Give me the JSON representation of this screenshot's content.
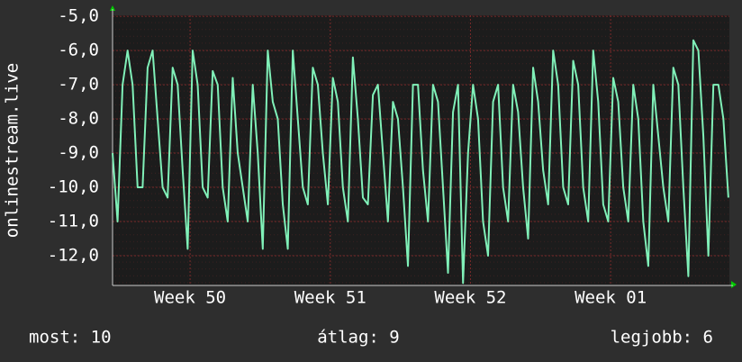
{
  "chart_data": {
    "type": "line",
    "ylabel": "onlinestream.live",
    "x": [
      0,
      0.25,
      0.5,
      0.75,
      1,
      1.25,
      1.5,
      1.75,
      2,
      2.25,
      2.5,
      2.75,
      3,
      3.25,
      3.5,
      3.75,
      4,
      4.25,
      4.5,
      4.75,
      5,
      5.25,
      5.5,
      5.75,
      6,
      6.25,
      6.5,
      6.75,
      7,
      7.25,
      7.5,
      7.75,
      8,
      8.25,
      8.5,
      8.75,
      9,
      9.25,
      9.5,
      9.75,
      10,
      10.25,
      10.5,
      10.75,
      11,
      11.25,
      11.5,
      11.75,
      12,
      12.25,
      12.5,
      12.75,
      13,
      13.25,
      13.5,
      13.75,
      14,
      14.25,
      14.5,
      14.75,
      15,
      15.25,
      15.5,
      15.75,
      16,
      16.25,
      16.5,
      16.75,
      17,
      17.25,
      17.5,
      17.75,
      18,
      18.25,
      18.5,
      18.75,
      19,
      19.25,
      19.5,
      19.75,
      20,
      20.25,
      20.5,
      20.75,
      21,
      21.25,
      21.5,
      21.75,
      22,
      22.25,
      22.5,
      22.75,
      23,
      23.25,
      23.5,
      23.75,
      24,
      24.25,
      24.5,
      24.75,
      25,
      25.25,
      25.5,
      25.75,
      26,
      26.25,
      26.5,
      26.75,
      27,
      27.25,
      27.5,
      27.75,
      28,
      28.25,
      28.5,
      28.75,
      29,
      29.25,
      29.5,
      29.75,
      30,
      30.25,
      30.5,
      30.75
    ],
    "series": [
      {
        "name": "onlinestream.live",
        "color": "#80f0b8",
        "values": [
          -9.0,
          -11.0,
          -7.0,
          -6.0,
          -7.0,
          -10.0,
          -10.0,
          -6.5,
          -6.0,
          -8.0,
          -10.0,
          -10.3,
          -6.5,
          -7.0,
          -9.5,
          -11.8,
          -6.0,
          -7.0,
          -10.0,
          -10.3,
          -6.6,
          -7.0,
          -10.0,
          -11.0,
          -6.8,
          -9.0,
          -10.0,
          -11.0,
          -7.0,
          -9.0,
          -11.8,
          -6.0,
          -7.5,
          -8.0,
          -10.5,
          -11.8,
          -6.0,
          -8.0,
          -10.0,
          -10.5,
          -6.5,
          -7.0,
          -9.0,
          -10.5,
          -6.8,
          -7.5,
          -10.0,
          -11.0,
          -6.2,
          -8.0,
          -10.3,
          -10.5,
          -7.3,
          -7.0,
          -9.0,
          -11.0,
          -7.5,
          -8.0,
          -10.0,
          -12.3,
          -7.0,
          -7.0,
          -9.5,
          -11.0,
          -7.0,
          -7.5,
          -10.0,
          -12.5,
          -7.8,
          -7.0,
          -12.8,
          -9.0,
          -7.0,
          -8.0,
          -11.0,
          -12.0,
          -7.5,
          -7.0,
          -10.0,
          -11.0,
          -7.0,
          -7.8,
          -10.0,
          -11.5,
          -6.5,
          -7.5,
          -9.5,
          -10.5,
          -6.0,
          -7.0,
          -10.0,
          -10.5,
          -6.3,
          -7.0,
          -10.0,
          -11.0,
          -6.0,
          -7.5,
          -10.5,
          -11.0,
          -6.8,
          -7.5,
          -10.0,
          -11.0,
          -7.0,
          -8.0,
          -11.0,
          -12.3,
          -7.0,
          -8.5,
          -10.0,
          -11.0,
          -6.5,
          -7.0,
          -10.0,
          -12.6,
          -5.7,
          -6.0,
          -8.5,
          -12.0,
          -7.0,
          -7.0,
          -8.0,
          -10.3
        ]
      }
    ],
    "xlim": [
      0,
      30.8
    ],
    "xticks": [
      {
        "value": 3.87,
        "label": "Week 50"
      },
      {
        "value": 10.87,
        "label": "Week 51"
      },
      {
        "value": 17.87,
        "label": "Week 52"
      },
      {
        "value": 24.87,
        "label": "Week 01"
      }
    ],
    "ylim": [
      -12.87,
      -4.97
    ],
    "yticks": [
      {
        "value": -5,
        "label": "-5,0"
      },
      {
        "value": -6,
        "label": "-6,0"
      },
      {
        "value": -7,
        "label": "-7,0"
      },
      {
        "value": -8,
        "label": "-8,0"
      },
      {
        "value": -9,
        "label": "-9,0"
      },
      {
        "value": -10,
        "label": "-10,0"
      },
      {
        "value": -11,
        "label": "-11,0"
      },
      {
        "value": -12,
        "label": "-12,0"
      }
    ],
    "grid": true,
    "stats": [
      "most: 10",
      "átlag: 9",
      "legjobb: 6"
    ]
  }
}
